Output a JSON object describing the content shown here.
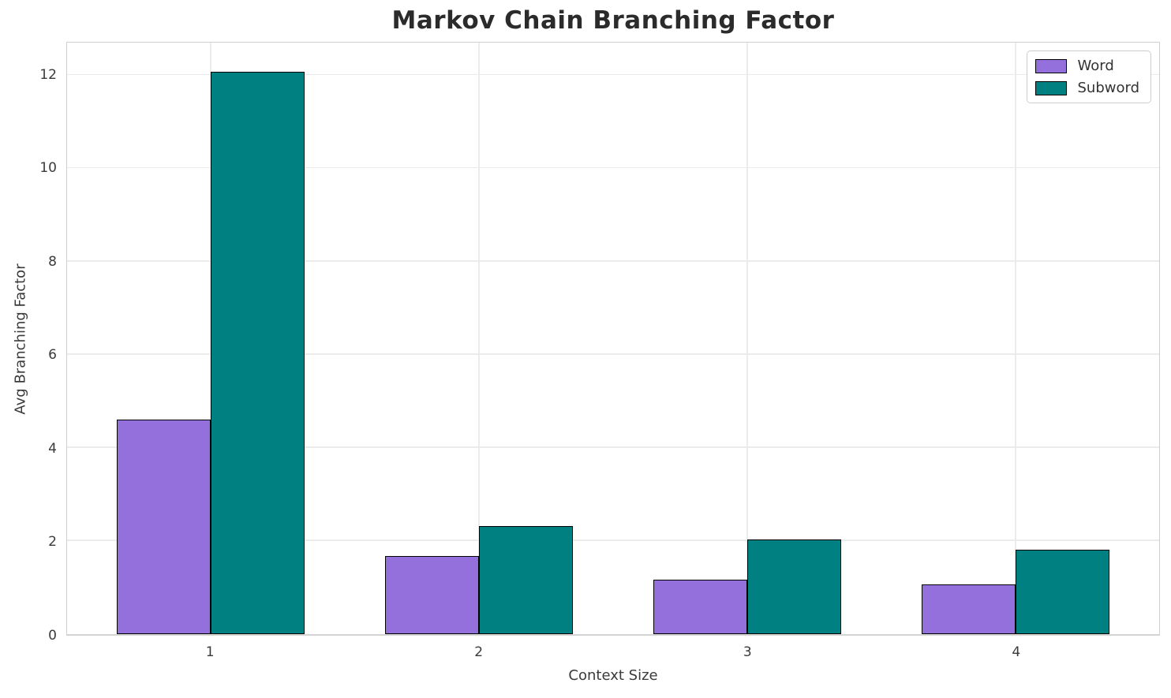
{
  "title": "Markov Chain Branching Factor",
  "chart_data": {
    "type": "bar",
    "title": "Markov Chain Branching Factor",
    "xlabel": "Context Size",
    "ylabel": "Avg Branching Factor",
    "categories": [
      "1",
      "2",
      "3",
      "4"
    ],
    "series": [
      {
        "name": "Word",
        "color": "#9370DB",
        "values": [
          4.6,
          1.68,
          1.17,
          1.06
        ]
      },
      {
        "name": "Subword",
        "color": "#008080",
        "values": [
          12.08,
          2.32,
          2.03,
          1.81
        ]
      }
    ],
    "yticks": [
      0,
      2,
      4,
      6,
      8,
      10,
      12
    ],
    "ylim": [
      0,
      12.7
    ],
    "grid": true,
    "legend_position": "upper right",
    "bar_edge_color": "#000000",
    "grid_color": "#ebebeb"
  }
}
